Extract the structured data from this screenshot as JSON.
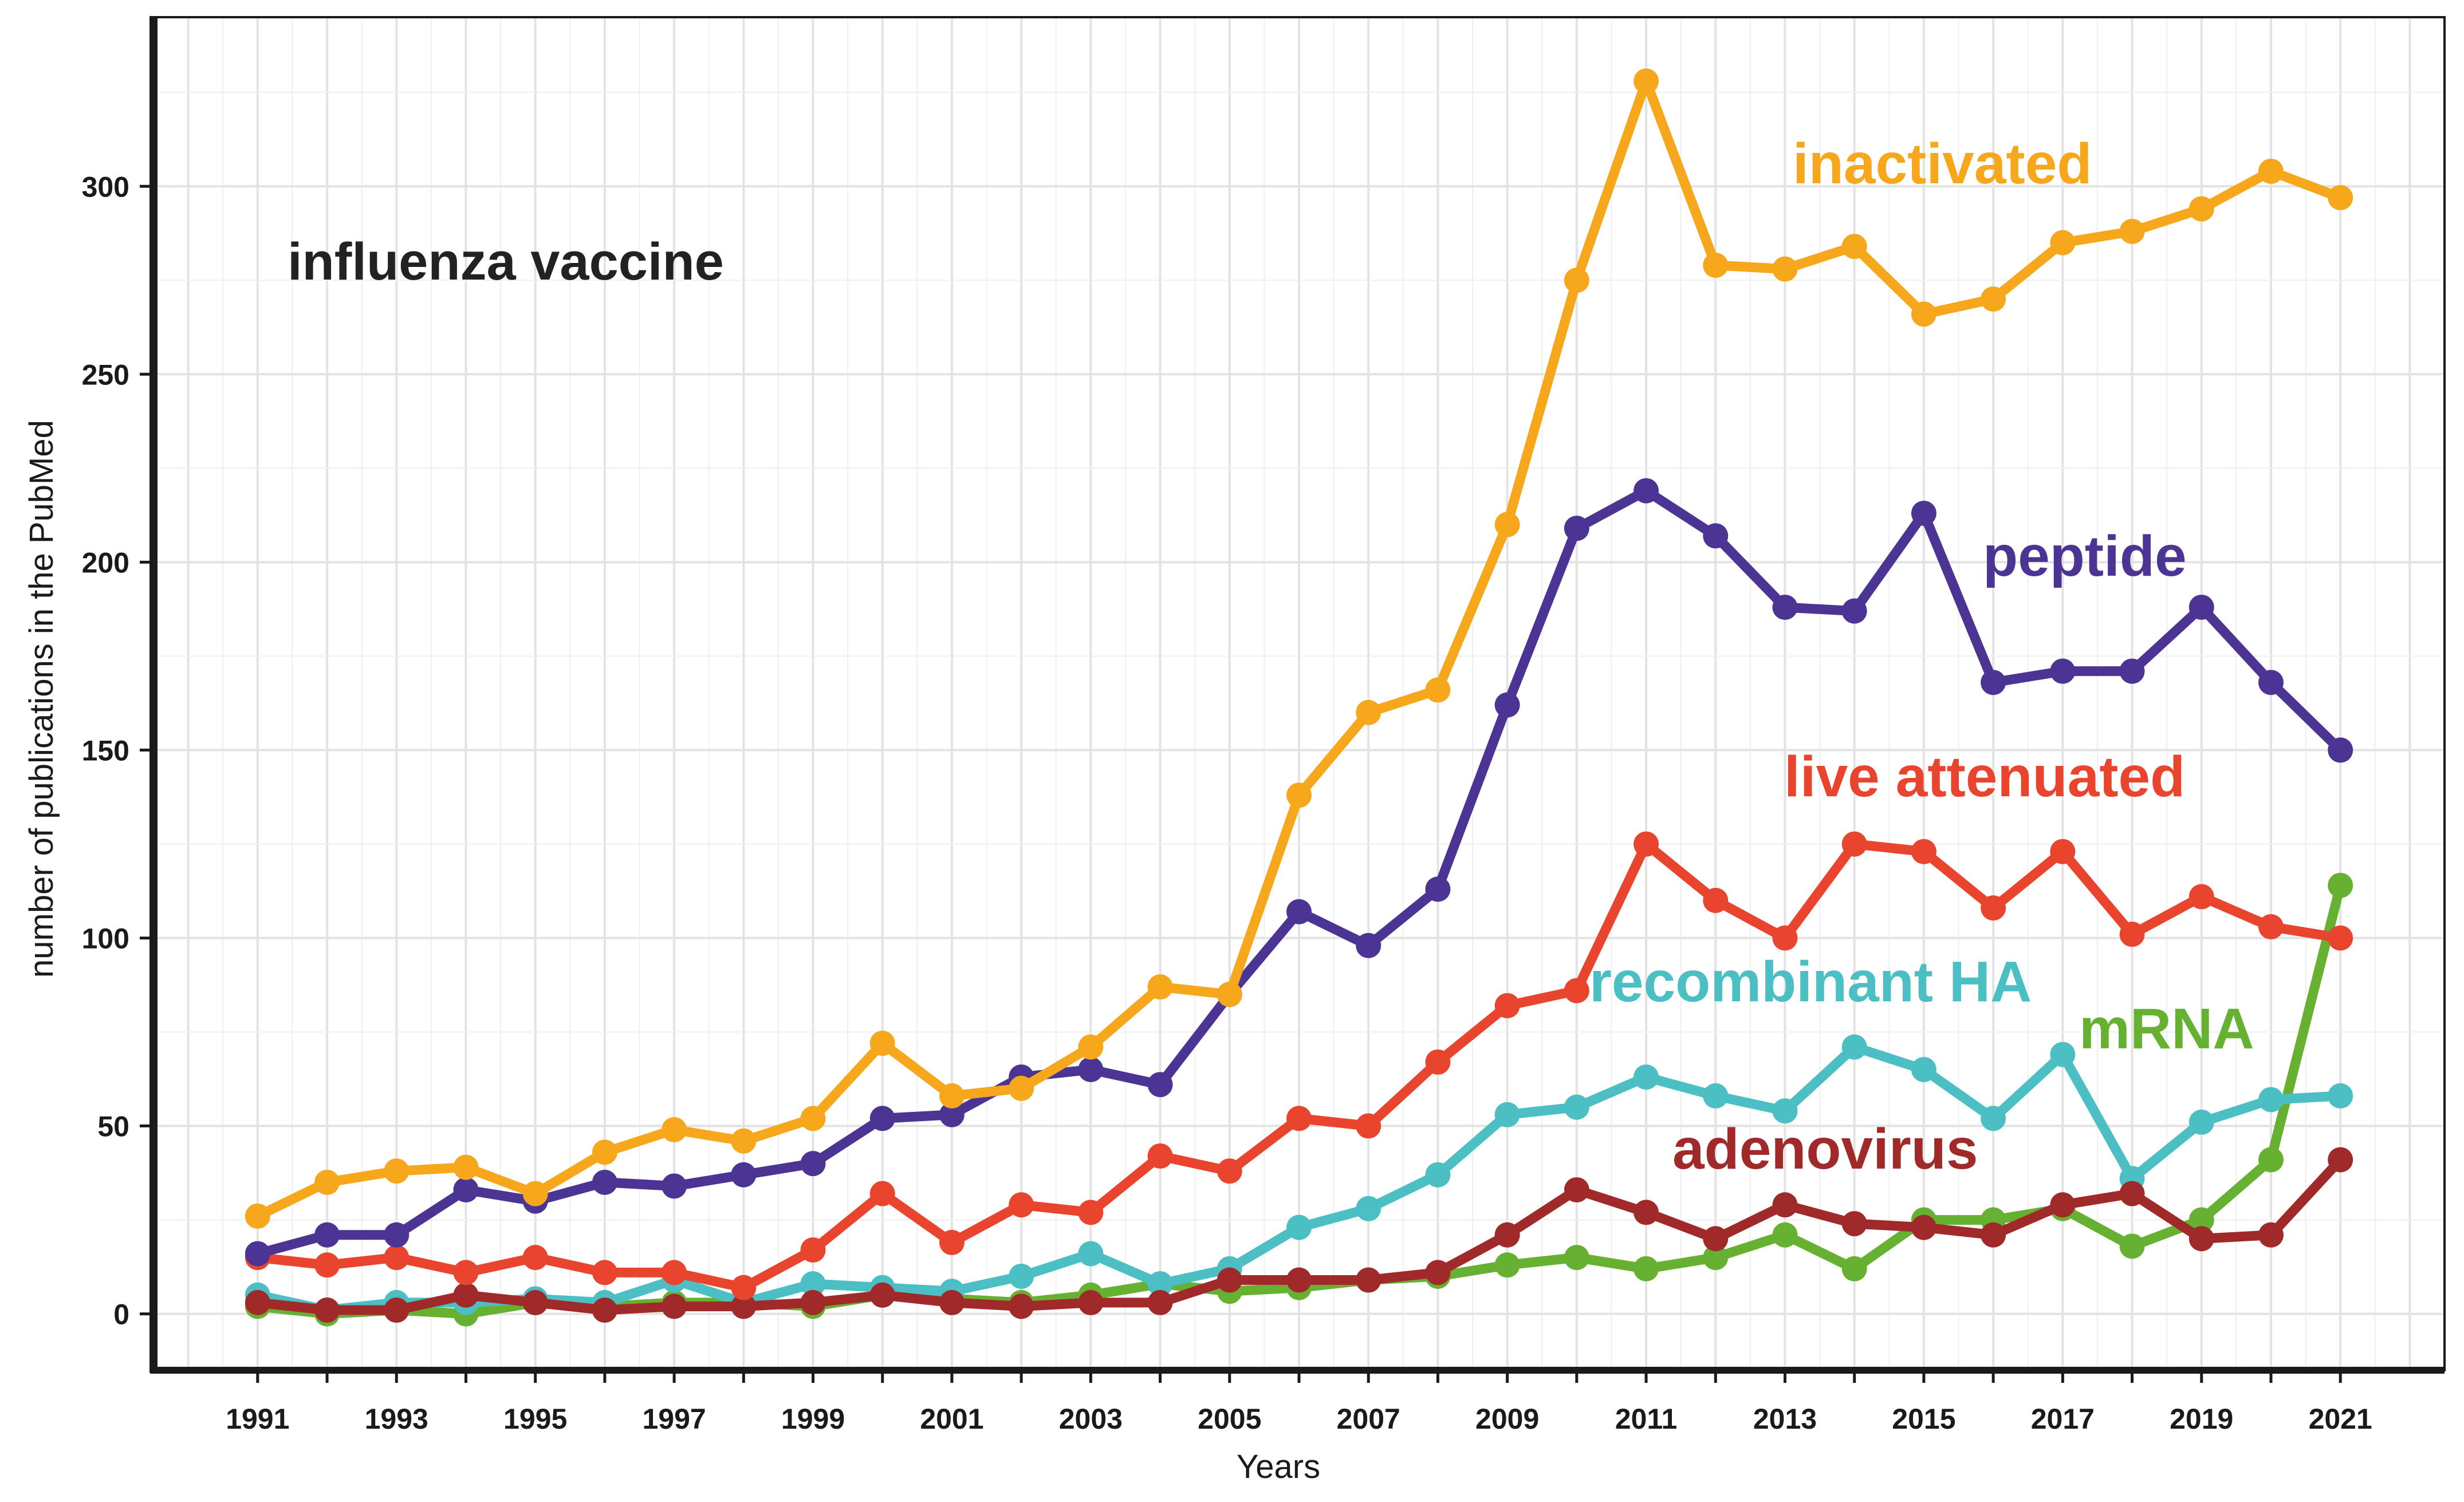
{
  "chart_data": {
    "type": "line",
    "title": "influenza vaccine",
    "xlabel": "Years",
    "ylabel": "number of publications in the PubMed",
    "xlim": [
      1989.5,
      2022.5
    ],
    "ylim": [
      -15,
      345
    ],
    "x": [
      1991,
      1992,
      1993,
      1994,
      1995,
      1996,
      1997,
      1998,
      1999,
      2000,
      2001,
      2002,
      2003,
      2004,
      2005,
      2006,
      2007,
      2008,
      2009,
      2010,
      2011,
      2012,
      2013,
      2014,
      2015,
      2016,
      2017,
      2018,
      2019,
      2020,
      2021
    ],
    "x_tick_labels": [
      "1991",
      "1993",
      "1995",
      "1997",
      "1999",
      "2001",
      "2003",
      "2005",
      "2007",
      "2009",
      "2011",
      "2013",
      "2015",
      "2017",
      "2019",
      "2021"
    ],
    "y_tick_labels": [
      "0",
      "50",
      "100",
      "150",
      "200",
      "250",
      "300"
    ],
    "grid": true,
    "series": [
      {
        "name": "mRNA",
        "color": "#66b032",
        "values": [
          2,
          0,
          1,
          0,
          3,
          2,
          3,
          3,
          2,
          5,
          4,
          3,
          5,
          8,
          6,
          7,
          9,
          10,
          13,
          15,
          12,
          15,
          21,
          12,
          25,
          25,
          28,
          18,
          25,
          41,
          114
        ]
      },
      {
        "name": "recombinant HA",
        "color": "#4bbfc3",
        "values": [
          5,
          1,
          3,
          3,
          4,
          3,
          9,
          3,
          8,
          7,
          6,
          10,
          16,
          8,
          12,
          23,
          28,
          37,
          53,
          55,
          63,
          58,
          54,
          71,
          65,
          52,
          69,
          36,
          51,
          57,
          58
        ]
      },
      {
        "name": "adenovirus",
        "color": "#a02a2a",
        "values": [
          3,
          1,
          1,
          5,
          3,
          1,
          2,
          2,
          3,
          5,
          3,
          2,
          3,
          3,
          9,
          9,
          9,
          11,
          21,
          33,
          27,
          20,
          29,
          24,
          23,
          21,
          29,
          32,
          20,
          21,
          41
        ]
      },
      {
        "name": "live attenuated",
        "color": "#e8442e",
        "values": [
          15,
          13,
          15,
          11,
          15,
          11,
          11,
          7,
          17,
          32,
          19,
          29,
          27,
          42,
          38,
          52,
          50,
          67,
          82,
          86,
          125,
          110,
          100,
          125,
          123,
          108,
          123,
          101,
          111,
          103,
          100
        ]
      },
      {
        "name": "peptide",
        "color": "#4b3493",
        "values": [
          16,
          21,
          21,
          33,
          30,
          35,
          34,
          37,
          40,
          52,
          53,
          63,
          65,
          61,
          85,
          107,
          98,
          113,
          162,
          209,
          219,
          207,
          188,
          187,
          213,
          168,
          171,
          171,
          188,
          168,
          150
        ]
      },
      {
        "name": "inactivated",
        "color": "#f6a71b",
        "values": [
          26,
          35,
          38,
          39,
          32,
          43,
          49,
          46,
          52,
          72,
          58,
          60,
          71,
          87,
          85,
          138,
          160,
          166,
          210,
          275,
          328,
          279,
          278,
          284,
          266,
          270,
          285,
          288,
          294,
          304,
          297
        ]
      }
    ],
    "annotations": [
      {
        "text": "inactivated",
        "color": "#f6a71b"
      },
      {
        "text": "peptide",
        "color": "#4b3493"
      },
      {
        "text": "live attenuated",
        "color": "#e8442e"
      },
      {
        "text": "recombinant HA",
        "color": "#4bbfc3"
      },
      {
        "text": "mRNA",
        "color": "#66b032"
      },
      {
        "text": "adenovirus",
        "color": "#a02a2a"
      }
    ]
  }
}
